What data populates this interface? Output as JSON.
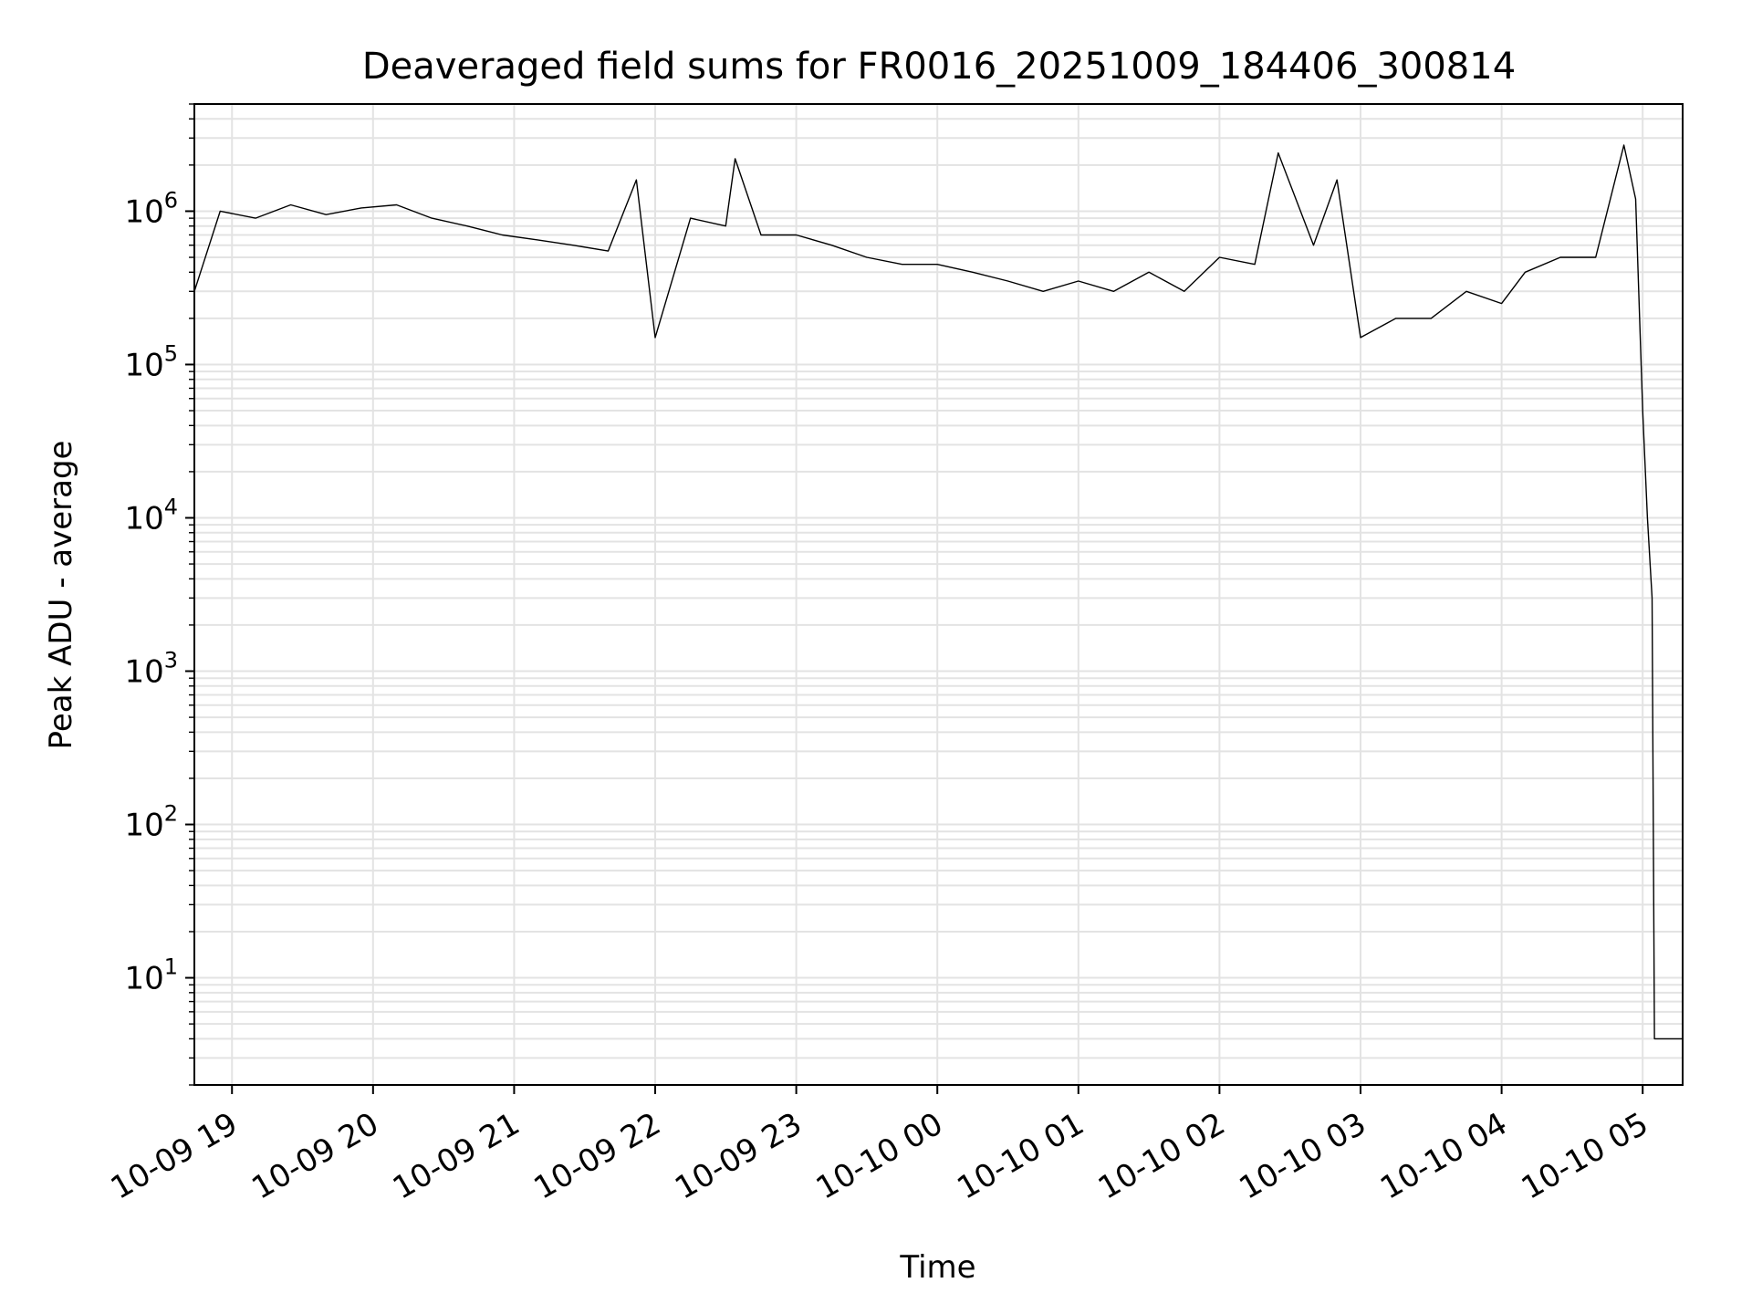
{
  "chart_data": {
    "type": "line",
    "title": "Deaveraged field sums for FR0016_20251009_184406_300814",
    "xlabel": "Time",
    "ylabel": "Peak ADU - average",
    "yscale": "log",
    "grid": true,
    "line_color": "#000000",
    "grid_color": "#e3e3e3",
    "xlim": [
      "2025-10-09 18:44",
      "2025-10-10 05:17"
    ],
    "ylim": [
      2,
      5000000
    ],
    "x_ticks": [
      {
        "t": "2025-10-09 19:00",
        "label": "10-09 19"
      },
      {
        "t": "2025-10-09 20:00",
        "label": "10-09 20"
      },
      {
        "t": "2025-10-09 21:00",
        "label": "10-09 21"
      },
      {
        "t": "2025-10-09 22:00",
        "label": "10-09 22"
      },
      {
        "t": "2025-10-09 23:00",
        "label": "10-09 23"
      },
      {
        "t": "2025-10-10 00:00",
        "label": "10-10 00"
      },
      {
        "t": "2025-10-10 01:00",
        "label": "10-10 01"
      },
      {
        "t": "2025-10-10 02:00",
        "label": "10-10 02"
      },
      {
        "t": "2025-10-10 03:00",
        "label": "10-10 03"
      },
      {
        "t": "2025-10-10 04:00",
        "label": "10-10 04"
      },
      {
        "t": "2025-10-10 05:00",
        "label": "10-10 05"
      }
    ],
    "y_ticks": [
      {
        "value": 10,
        "base": "10",
        "exp": "1"
      },
      {
        "value": 100,
        "base": "10",
        "exp": "2"
      },
      {
        "value": 1000,
        "base": "10",
        "exp": "3"
      },
      {
        "value": 10000,
        "base": "10",
        "exp": "4"
      },
      {
        "value": 100000,
        "base": "10",
        "exp": "5"
      },
      {
        "value": 1000000,
        "base": "10",
        "exp": "6"
      }
    ],
    "series": [
      {
        "x": [
          "2025-10-09 18:44",
          "2025-10-09 18:55",
          "2025-10-09 19:10",
          "2025-10-09 19:25",
          "2025-10-09 19:40",
          "2025-10-09 19:55",
          "2025-10-09 20:10",
          "2025-10-09 20:25",
          "2025-10-09 20:40",
          "2025-10-09 20:55",
          "2025-10-09 21:10",
          "2025-10-09 21:25",
          "2025-10-09 21:40",
          "2025-10-09 21:52",
          "2025-10-09 22:00",
          "2025-10-09 22:15",
          "2025-10-09 22:30",
          "2025-10-09 22:34",
          "2025-10-09 22:45",
          "2025-10-09 23:00",
          "2025-10-09 23:15",
          "2025-10-09 23:30",
          "2025-10-09 23:45",
          "2025-10-10 00:00",
          "2025-10-10 00:15",
          "2025-10-10 00:30",
          "2025-10-10 00:45",
          "2025-10-10 01:00",
          "2025-10-10 01:15",
          "2025-10-10 01:30",
          "2025-10-10 01:45",
          "2025-10-10 02:00",
          "2025-10-10 02:15",
          "2025-10-10 02:25",
          "2025-10-10 02:40",
          "2025-10-10 02:50",
          "2025-10-10 03:00",
          "2025-10-10 03:15",
          "2025-10-10 03:30",
          "2025-10-10 03:45",
          "2025-10-10 04:00",
          "2025-10-10 04:10",
          "2025-10-10 04:25",
          "2025-10-10 04:40",
          "2025-10-10 04:52",
          "2025-10-10 04:57",
          "2025-10-10 05:00",
          "2025-10-10 05:02",
          "2025-10-10 05:04",
          "2025-10-10 05:05",
          "2025-10-10 05:17"
        ],
        "y": [
          300000,
          1000000,
          900000,
          1100000,
          950000,
          1050000,
          1100000,
          900000,
          800000,
          700000,
          650000,
          600000,
          550000,
          1600000,
          150000,
          900000,
          800000,
          2200000,
          700000,
          700000,
          600000,
          500000,
          450000,
          450000,
          400000,
          350000,
          300000,
          350000,
          300000,
          400000,
          300000,
          500000,
          450000,
          2400000,
          600000,
          1600000,
          150000,
          200000,
          200000,
          300000,
          250000,
          400000,
          500000,
          500000,
          2700000,
          1200000,
          50000,
          10000,
          3000,
          4,
          4
        ]
      }
    ]
  }
}
